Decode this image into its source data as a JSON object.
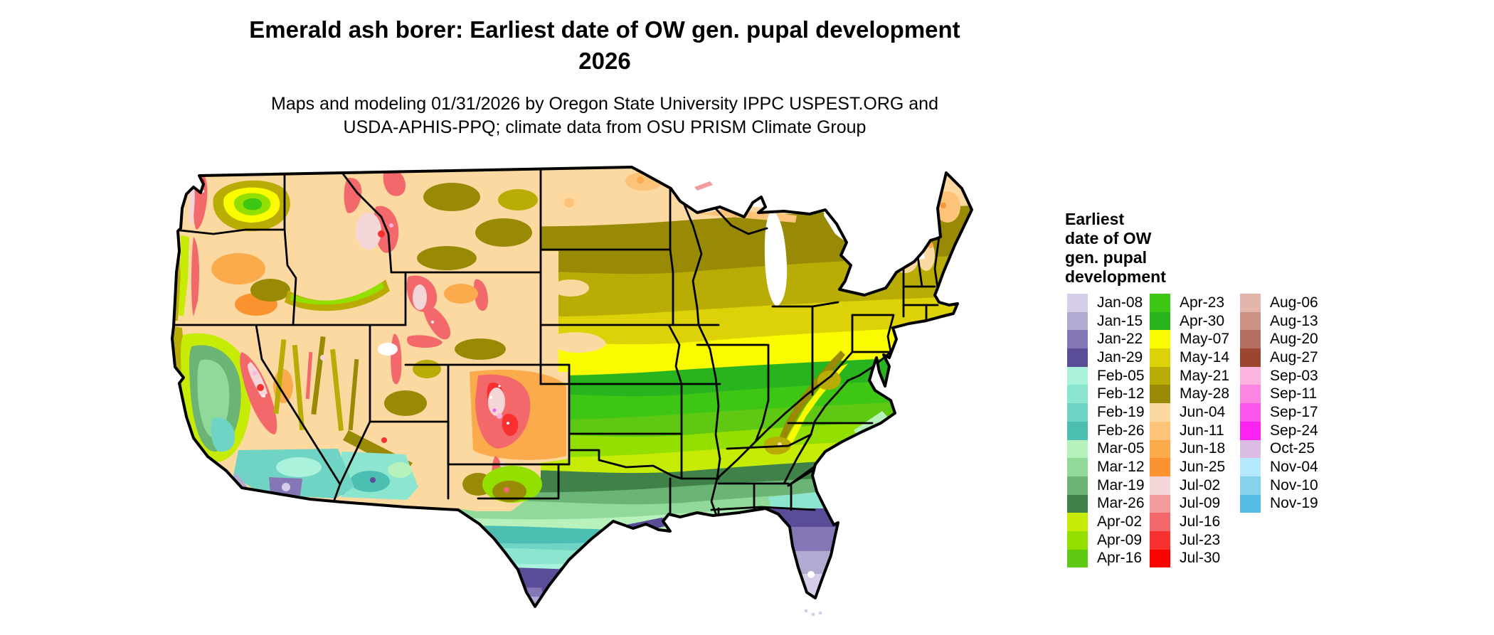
{
  "title": {
    "line1": "Emerald ash borer: Earliest date of OW gen. pupal development",
    "line2": "2026"
  },
  "subtitle": {
    "line1": "Maps and modeling 01/31/2026 by Oregon State University IPPC USPEST.ORG and",
    "line2": "USDA-APHIS-PPQ; climate data from OSU PRISM Climate Group"
  },
  "legend": {
    "title_lines": [
      "Earliest",
      "date of OW",
      "gen. pupal",
      "development"
    ],
    "columns": [
      [
        {
          "label": "Jan-08",
          "color": "#d6cde8"
        },
        {
          "label": "Jan-15",
          "color": "#b3aad2"
        },
        {
          "label": "Jan-22",
          "color": "#8577b6"
        },
        {
          "label": "Jan-29",
          "color": "#5a4c96"
        },
        {
          "label": "Feb-05",
          "color": "#abf2dc"
        },
        {
          "label": "Feb-12",
          "color": "#8ce5cf"
        },
        {
          "label": "Feb-19",
          "color": "#6fd4c4"
        },
        {
          "label": "Feb-26",
          "color": "#4cbfb2"
        },
        {
          "label": "Mar-05",
          "color": "#b7f2bc"
        },
        {
          "label": "Mar-12",
          "color": "#91d999"
        },
        {
          "label": "Mar-19",
          "color": "#6cb475"
        },
        {
          "label": "Mar-26",
          "color": "#3f8149"
        },
        {
          "label": "Apr-02",
          "color": "#c6ec05"
        },
        {
          "label": "Apr-09",
          "color": "#93e000"
        },
        {
          "label": "Apr-16",
          "color": "#5fc813"
        }
      ],
      [
        {
          "label": "Apr-23",
          "color": "#3ec614"
        },
        {
          "label": "Apr-30",
          "color": "#28b41e"
        },
        {
          "label": "May-07",
          "color": "#fbfb00"
        },
        {
          "label": "May-14",
          "color": "#dcd207"
        },
        {
          "label": "May-21",
          "color": "#b8ac05"
        },
        {
          "label": "May-28",
          "color": "#998a06"
        },
        {
          "label": "Jun-04",
          "color": "#fcd9a0"
        },
        {
          "label": "Jun-11",
          "color": "#fcc379"
        },
        {
          "label": "Jun-18",
          "color": "#fbaa4c"
        },
        {
          "label": "Jun-25",
          "color": "#fa9330"
        },
        {
          "label": "Jul-02",
          "color": "#f5d6d8"
        },
        {
          "label": "Jul-09",
          "color": "#f19b9d"
        },
        {
          "label": "Jul-16",
          "color": "#f3696b"
        },
        {
          "label": "Jul-23",
          "color": "#f83030"
        },
        {
          "label": "Jul-30",
          "color": "#fa0400"
        }
      ],
      [
        {
          "label": "Aug-06",
          "color": "#e3b6ac"
        },
        {
          "label": "Aug-13",
          "color": "#cb9184"
        },
        {
          "label": "Aug-20",
          "color": "#b56f60"
        },
        {
          "label": "Aug-27",
          "color": "#9c4632"
        },
        {
          "label": "Sep-03",
          "color": "#fcb3de"
        },
        {
          "label": "Sep-11",
          "color": "#fc85e4"
        },
        {
          "label": "Sep-17",
          "color": "#fc56ec"
        },
        {
          "label": "Sep-24",
          "color": "#fb22f2"
        },
        {
          "label": "Oct-25",
          "color": "#dcbce4"
        },
        {
          "label": "Nov-04",
          "color": "#b4e8fc"
        },
        {
          "label": "Nov-10",
          "color": "#84d2ec"
        },
        {
          "label": "Nov-19",
          "color": "#54bce4"
        }
      ]
    ]
  },
  "map_data": {
    "type": "choropleth map",
    "region": "Contiguous United States with state borders",
    "variable": "Earliest date of OW gen. pupal development (emerald ash borer)",
    "year": "2026",
    "band_order_north_to_south": [
      "Jun-04",
      "May-28",
      "May-21",
      "May-14",
      "May-07",
      "Apr-30",
      "Apr-23",
      "Apr-16",
      "Apr-09",
      "Apr-02",
      "Mar-26",
      "Mar-19",
      "Mar-12",
      "Mar-05",
      "Feb-26",
      "Feb-19",
      "Feb-12",
      "Feb-05",
      "Jan-29",
      "Jan-22",
      "Jan-15",
      "Jan-08"
    ],
    "notes": "Northern tier and Maine show Jun dates; latitudinal bands grade to Jan dates along the Gulf Coast, south Texas and south Florida. Western mountains show later dates (Jun-Sep oranges, reds, pinks); southwest deserts and California valleys show Jan-Mar colors; Great Lakes shown white."
  }
}
